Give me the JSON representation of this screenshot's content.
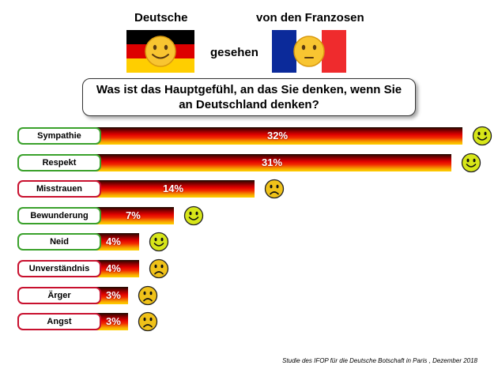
{
  "header": {
    "left_title": "Deutsche",
    "middle_word": "gesehen",
    "right_title": "von den Franzosen"
  },
  "question": {
    "line1": "Was ist das Hauptgefühl, an das Sie denken, wenn Sie",
    "line2": "an Deutschland denken?"
  },
  "footnote": "Studie des IFOP für die Deutsche Botschaft in Paris , Dezember 2018",
  "flags": {
    "germany": [
      "#000000",
      "#dd0000",
      "#ffce00"
    ],
    "france": [
      "#0b2a9a",
      "#ffffff",
      "#ef2b2d"
    ]
  },
  "colors": {
    "positive_border": "#3aa12b",
    "negative_border": "#c8102e",
    "happy_face": "#d7e619",
    "sad_face": "#f0c21a"
  },
  "chart_data": {
    "type": "bar",
    "orientation": "horizontal",
    "categories": [
      "Sympathie",
      "Respekt",
      "Misstrauen",
      "Bewunderung",
      "Neid",
      "Unverständnis",
      "Ärger",
      "Angst"
    ],
    "values": [
      32,
      31,
      14,
      7,
      4,
      4,
      3,
      3
    ],
    "value_labels": [
      "32%",
      "31%",
      "14%",
      "7%",
      "4%",
      "4%",
      "3%",
      "3%"
    ],
    "sentiment": [
      "positive",
      "positive",
      "negative",
      "positive",
      "positive",
      "negative",
      "negative",
      "negative"
    ],
    "unit": "%"
  }
}
